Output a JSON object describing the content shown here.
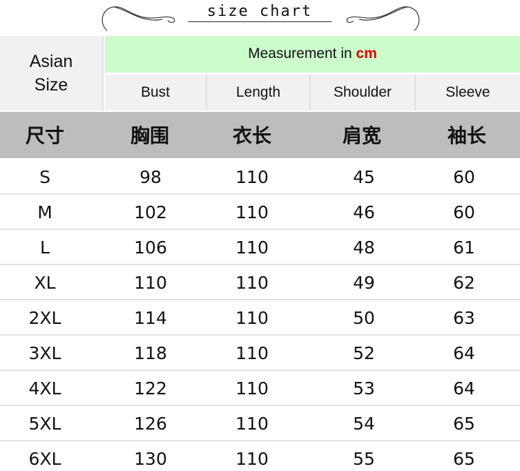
{
  "title": "size chart",
  "header": {
    "size_label": "Asian Size",
    "measurement_prefix": "Measurement in ",
    "measurement_unit": "cm",
    "columns": [
      "Bust",
      "Length",
      "Shoulder",
      "Sleeve"
    ],
    "chinese_columns": [
      "尺寸",
      "胸围",
      "衣长",
      "肩宽",
      "袖长"
    ]
  },
  "colors": {
    "measurement_bg": "#ccfccc",
    "unit": "#dd0000",
    "chinese_header_bg": "#bdbdbd"
  },
  "rows": [
    [
      "S",
      "98",
      "110",
      "45",
      "60"
    ],
    [
      "M",
      "102",
      "110",
      "46",
      "60"
    ],
    [
      "L",
      "106",
      "110",
      "48",
      "61"
    ],
    [
      "XL",
      "110",
      "110",
      "49",
      "62"
    ],
    [
      "2XL",
      "114",
      "110",
      "50",
      "63"
    ],
    [
      "3XL",
      "118",
      "110",
      "52",
      "64"
    ],
    [
      "4XL",
      "122",
      "110",
      "53",
      "64"
    ],
    [
      "5XL",
      "126",
      "110",
      "54",
      "65"
    ],
    [
      "6XL",
      "130",
      "110",
      "55",
      "65"
    ]
  ]
}
